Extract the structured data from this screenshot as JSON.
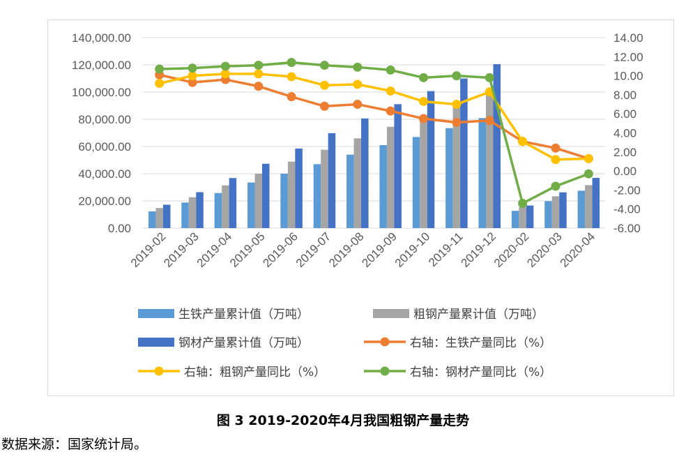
{
  "chart_data": {
    "type": "bar+line",
    "categories": [
      "2019-02",
      "2019-03",
      "2019-04",
      "2019-05",
      "2019-06",
      "2019-07",
      "2019-08",
      "2019-09",
      "2019-10",
      "2019-11",
      "2019-12",
      "2020-02",
      "2020-03",
      "2020-04"
    ],
    "left_axis": {
      "ylim": [
        0,
        140000
      ],
      "ticks": [
        "0.00",
        "20,000.00",
        "40,000.00",
        "60,000.00",
        "80,000.00",
        "100,000.00",
        "120,000.00",
        "140,000.00"
      ]
    },
    "right_axis": {
      "ylim": [
        -6,
        14
      ],
      "ticks": [
        "-6.00",
        "-4.00",
        "-2.00",
        "0.00",
        "2.00",
        "4.00",
        "6.00",
        "8.00",
        "10.00",
        "12.00",
        "14.00"
      ]
    },
    "bar_series": [
      {
        "name": "生铁产量累计值（万吨）",
        "color": "#5b9bd5",
        "values": [
          12300,
          18800,
          25800,
          33500,
          40000,
          47000,
          54000,
          61000,
          67000,
          73500,
          80900,
          12700,
          19800,
          27500
        ]
      },
      {
        "name": "粗钢产量累计值（万吨）",
        "color": "#a5a5a5",
        "values": [
          14800,
          22700,
          31400,
          40000,
          48900,
          57600,
          66000,
          74500,
          82700,
          90500,
          99600,
          15500,
          23400,
          31600
        ]
      },
      {
        "name": "钢材产量累计值（万吨）",
        "color": "#4472c4",
        "values": [
          17200,
          26400,
          36800,
          47300,
          58500,
          69800,
          80600,
          91100,
          100700,
          110000,
          120500,
          16600,
          26300,
          36900
        ]
      }
    ],
    "line_series": [
      {
        "name": "右轴：生铁产量同比（%）",
        "color": "#ed7d31",
        "values": [
          10.1,
          9.3,
          9.6,
          8.9,
          7.8,
          6.8,
          7.0,
          6.3,
          5.5,
          5.1,
          5.3,
          3.1,
          2.4,
          1.3
        ]
      },
      {
        "name": "右轴：粗钢产量同比（%）",
        "color": "#ffc000",
        "values": [
          9.2,
          10.0,
          10.2,
          10.2,
          9.9,
          9.0,
          9.1,
          8.4,
          7.3,
          7.0,
          8.3,
          3.1,
          1.2,
          1.3
        ]
      },
      {
        "name": "右轴：钢材产量同比（%）",
        "color": "#70ad47",
        "values": [
          10.7,
          10.8,
          11.0,
          11.1,
          11.4,
          11.1,
          10.9,
          10.6,
          9.8,
          10.0,
          9.8,
          -3.4,
          -1.6,
          -0.3
        ]
      }
    ],
    "legend_position": "bottom"
  },
  "caption": "图 3 2019-2020年4月我国粗钢产量走势",
  "source": "数据来源：国家统计局。"
}
